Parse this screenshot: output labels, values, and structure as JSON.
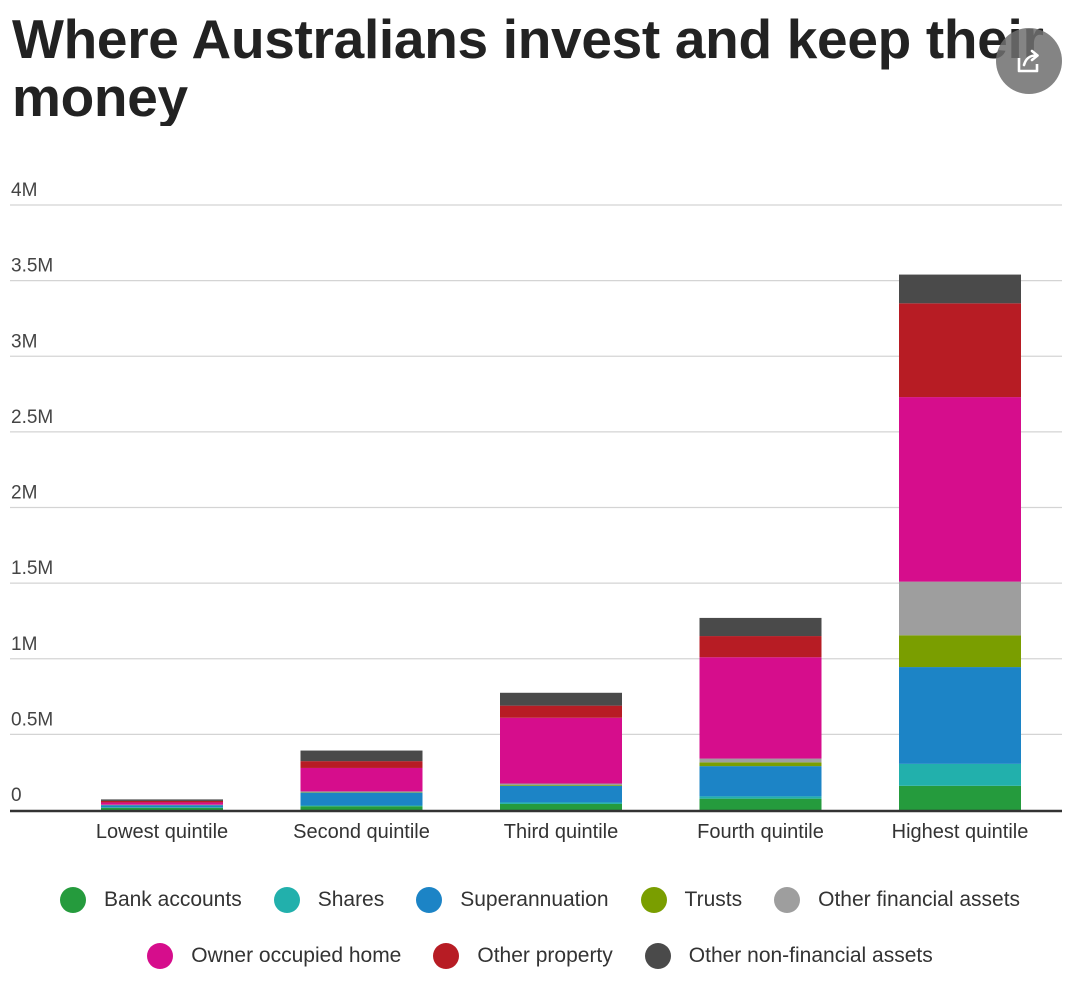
{
  "page": {
    "title_line1": "Where Australians invest and keep their",
    "title_line2": "money",
    "share_icon": "share-icon"
  },
  "chart_data": {
    "type": "bar",
    "stacked": true,
    "title": "Where Australians invest and keep their money",
    "categories": [
      "Lowest quintile",
      "Second quintile",
      "Third quintile",
      "Fourth quintile",
      "Highest quintile"
    ],
    "yticks": [
      {
        "value": 0,
        "label": "0"
      },
      {
        "value": 500000,
        "label": "0.5M"
      },
      {
        "value": 1000000,
        "label": "1M"
      },
      {
        "value": 1500000,
        "label": "1.5M"
      },
      {
        "value": 2000000,
        "label": "2M"
      },
      {
        "value": 2500000,
        "label": "2.5M"
      },
      {
        "value": 3000000,
        "label": "3M"
      },
      {
        "value": 3500000,
        "label": "3.5M"
      },
      {
        "value": 4000000,
        "label": "4M"
      }
    ],
    "ylim": [
      0,
      4000000
    ],
    "grid": true,
    "legend_position": "bottom",
    "series": [
      {
        "name": "Bank accounts",
        "color": "#259b3d",
        "values": [
          15000,
          25000,
          40000,
          75000,
          160000
        ]
      },
      {
        "name": "Shares",
        "color": "#22b0ac",
        "values": [
          2000,
          5000,
          10000,
          15000,
          145000
        ]
      },
      {
        "name": "Superannuation",
        "color": "#1c84c6",
        "values": [
          15000,
          85000,
          110000,
          200000,
          640000
        ]
      },
      {
        "name": "Trusts",
        "color": "#7a9e00",
        "values": [
          1000,
          3000,
          5000,
          25000,
          210000
        ]
      },
      {
        "name": "Other financial assets",
        "color": "#9e9e9e",
        "values": [
          2000,
          5000,
          10000,
          25000,
          355000
        ]
      },
      {
        "name": "Owner occupied home",
        "color": "#d60d8c",
        "values": [
          15000,
          155000,
          435000,
          670000,
          1220000
        ]
      },
      {
        "name": "Other property",
        "color": "#b71c24",
        "values": [
          10000,
          45000,
          80000,
          140000,
          620000
        ]
      },
      {
        "name": "Other non-financial assets",
        "color": "#4a4a4a",
        "values": [
          10000,
          70000,
          85000,
          120000,
          190000
        ]
      }
    ]
  }
}
